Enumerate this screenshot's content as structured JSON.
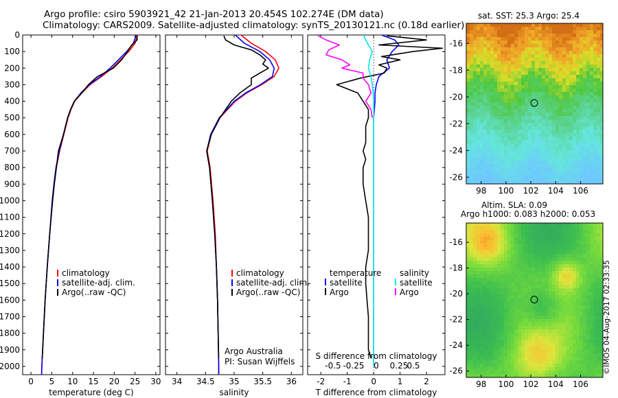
{
  "header": {
    "line1": "Argo profile: csiro 5903921_42 21-Jan-2013 20.454S 102.274E (DM data)",
    "line2": "Climatology: CARS2009. Satellite-adjusted climatology: synTS_20130121.nc (0.18d earlier)"
  },
  "map_sst": {
    "title": "sat. SST: 25.3 Argo: 25.4"
  },
  "map_sla": {
    "title_line1": "Altim. SLA: 0.09",
    "title_line2": "Argo h1000: 0.083 h2000: 0.053"
  },
  "footer": {
    "credit": "©IMOS 04-Aug-2017 02:33:35"
  },
  "colors": {
    "climatology": "#ff0000",
    "satellite": "#0000ff",
    "argo": "#000000",
    "s_satellite": "#00e6e6",
    "s_argo": "#ff00ff"
  },
  "chart_data": [
    {
      "type": "line",
      "xlabel": "temperature (deg C)",
      "xticks": [
        "0",
        "5",
        "10",
        "15",
        "20",
        "25",
        "30"
      ],
      "yticks": [
        "0",
        "100",
        "200",
        "300",
        "400",
        "500",
        "600",
        "700",
        "800",
        "900",
        "1000",
        "1100",
        "1200",
        "1300",
        "1400",
        "1500",
        "1600",
        "1700",
        "1800",
        "1900",
        "2000"
      ],
      "xlim": [
        -2,
        31
      ],
      "ylim": [
        2050,
        0
      ],
      "legend": [
        "climatology",
        "satellite-adj. clim.",
        "Argo(..raw -QC)"
      ],
      "series": [
        {
          "name": "climatology",
          "depth": [
            0,
            50,
            100,
            150,
            200,
            250,
            300,
            350,
            400,
            450,
            500,
            600,
            700,
            800,
            900,
            1000,
            1200,
            1400,
            1600,
            1800,
            2000,
            2050
          ],
          "values": [
            25.6,
            25.0,
            23.5,
            21.5,
            19.5,
            17.0,
            14.2,
            12.2,
            10.5,
            9.6,
            8.9,
            7.9,
            6.9,
            6.1,
            5.6,
            5.2,
            4.5,
            3.9,
            3.4,
            3.0,
            2.6,
            2.55
          ]
        },
        {
          "name": "satellite-adj. clim.",
          "depth": [
            0,
            50,
            100,
            150,
            200,
            250,
            300,
            350,
            400,
            450,
            500,
            600,
            700,
            800,
            900,
            1000,
            1200,
            1400,
            1600,
            1800,
            2000,
            2050
          ],
          "values": [
            25.3,
            24.6,
            23.0,
            21.0,
            19.0,
            16.7,
            14.0,
            12.0,
            10.4,
            9.5,
            8.8,
            7.8,
            6.8,
            6.0,
            5.5,
            5.1,
            4.5,
            3.9,
            3.4,
            3.0,
            2.6,
            2.55
          ]
        },
        {
          "name": "Argo(..raw -QC)",
          "depth": [
            5,
            30,
            60,
            100,
            150,
            200,
            250,
            300,
            350,
            400,
            450,
            500,
            600,
            700,
            800,
            900,
            1000,
            1200,
            1400,
            1600,
            1800,
            1950
          ],
          "values": [
            25.5,
            25.5,
            24.2,
            23.2,
            21.8,
            19.8,
            16.0,
            13.8,
            12.2,
            10.4,
            9.5,
            8.8,
            7.8,
            6.6,
            6.1,
            5.6,
            5.2,
            4.5,
            3.9,
            3.4,
            3.0,
            2.7
          ]
        }
      ]
    },
    {
      "type": "line",
      "xlabel": "salinity",
      "xticks": [
        "34",
        "34.5",
        "35",
        "35.5",
        "36"
      ],
      "yticks": [],
      "xlim": [
        33.8,
        36.2
      ],
      "ylim": [
        2050,
        0
      ],
      "legend": [
        "climatology",
        "satellite-adj. clim.",
        "Argo(..raw -QC)"
      ],
      "annotations": [
        "Argo Australia",
        "PI: Susan Wijffels"
      ],
      "series": [
        {
          "name": "climatology",
          "depth": [
            0,
            50,
            100,
            150,
            200,
            250,
            300,
            350,
            400,
            500,
            600,
            700,
            800,
            1000,
            1200,
            1400,
            1600,
            1800,
            2000,
            2050
          ],
          "values": [
            35.12,
            35.3,
            35.55,
            35.72,
            35.78,
            35.7,
            35.48,
            35.22,
            35.02,
            34.75,
            34.6,
            34.53,
            34.58,
            34.63,
            34.67,
            34.69,
            34.71,
            34.72,
            34.73,
            34.73
          ]
        },
        {
          "name": "satellite-adj. clim.",
          "depth": [
            0,
            50,
            100,
            150,
            200,
            250,
            300,
            350,
            400,
            500,
            600,
            700,
            800,
            1000,
            1200,
            1400,
            1600,
            1800,
            2000,
            2050
          ],
          "values": [
            35.02,
            35.18,
            35.45,
            35.62,
            35.7,
            35.67,
            35.46,
            35.2,
            35.0,
            34.74,
            34.59,
            34.52,
            34.57,
            34.62,
            34.66,
            34.69,
            34.71,
            34.72,
            34.73,
            34.73
          ]
        },
        {
          "name": "Argo(..raw -QC)",
          "depth": [
            5,
            30,
            60,
            90,
            120,
            150,
            175,
            200,
            230,
            260,
            300,
            350,
            400,
            450,
            500,
            600,
            700,
            800,
            1000,
            1200,
            1400,
            1600,
            1800,
            1950
          ],
          "values": [
            34.82,
            34.85,
            35.0,
            35.3,
            35.45,
            35.55,
            35.5,
            35.6,
            35.45,
            35.3,
            35.3,
            35.1,
            34.95,
            34.85,
            34.75,
            34.6,
            34.52,
            34.57,
            34.62,
            34.66,
            34.69,
            34.71,
            34.72,
            34.73
          ]
        }
      ]
    },
    {
      "type": "line",
      "xlabel": "T difference from climatology",
      "xlabel_top": "S difference from climatology",
      "xticks": [
        "-2",
        "-1",
        "0",
        "1",
        "2"
      ],
      "xticks_top": [
        "-0.5",
        "-0.25",
        "0",
        "0.25",
        "0.5"
      ],
      "yticks": [],
      "xlim": [
        -2.5,
        2.7
      ],
      "ylim": [
        2050,
        0
      ],
      "legend_temperature": [
        "temperature",
        "satellite",
        "Argo"
      ],
      "legend_salinity": [
        "salinity",
        "satellite",
        "Argo"
      ],
      "series": [
        {
          "name": "satellite",
          "depth": [
            0,
            30,
            60,
            100,
            150,
            200,
            250,
            300,
            350,
            400,
            500,
            700,
            1000,
            1500,
            2000
          ],
          "values": [
            0.3,
            0.8,
            0.95,
            0.7,
            0.5,
            0.6,
            0.2,
            0.1,
            0.05,
            0.05,
            0.0,
            0.0,
            0.0,
            0.0,
            0.0
          ]
        },
        {
          "name": "Argo",
          "depth": [
            5,
            30,
            60,
            80,
            100,
            130,
            150,
            180,
            200,
            230,
            260,
            300,
            350,
            400,
            450,
            500,
            550,
            600,
            650,
            700,
            750,
            800,
            850,
            900,
            1000,
            1100,
            1200,
            1300,
            1400,
            1500,
            1600,
            1700,
            1800,
            1900,
            1950
          ],
          "values": [
            0.5,
            2.0,
            0.2,
            2.6,
            1.5,
            0.3,
            1.0,
            0.2,
            0.5,
            0.4,
            -0.5,
            -1.4,
            -0.6,
            -0.4,
            -0.2,
            -0.2,
            -0.3,
            -0.3,
            -0.3,
            -0.4,
            -0.3,
            -0.4,
            -0.4,
            -0.4,
            -0.3,
            -0.2,
            -0.2,
            -0.2,
            -0.3,
            -0.3,
            -0.25,
            -0.2,
            -0.2,
            -0.2,
            -0.1
          ]
        },
        {
          "name": "S satellite",
          "depth": [
            0,
            30,
            60,
            100,
            150,
            200,
            250,
            300,
            350,
            400,
            500,
            700,
            1000,
            1500,
            2000
          ],
          "values": [
            -0.38,
            -0.3,
            -0.2,
            -0.05,
            -0.15,
            -0.2,
            -0.1,
            -0.05,
            -0.02,
            0.0,
            0.0,
            0.0,
            0.0,
            0.0,
            0.0
          ]
        },
        {
          "name": "S Argo",
          "depth": [
            5,
            30,
            60,
            90,
            120,
            150,
            180,
            200,
            230,
            260,
            300,
            350,
            400,
            450,
            500
          ],
          "values": [
            -2.1,
            -1.8,
            -1.3,
            -1.7,
            -1.8,
            -1.2,
            -0.9,
            -1.2,
            -0.4,
            -0.4,
            -0.2,
            -0.1,
            -0.3,
            -0.1,
            -0.05
          ]
        }
      ]
    },
    {
      "type": "heatmap",
      "title": "sat. SST: 25.3 Argo: 25.4",
      "xticks": [
        "98",
        "100",
        "102",
        "104",
        "106"
      ],
      "yticks": [
        "-16",
        "-18",
        "-20",
        "-22",
        "-24",
        "-26"
      ],
      "xlim": [
        96.8,
        107.8
      ],
      "ylim": [
        -26.5,
        -14.5
      ],
      "marker": {
        "lon": 102.274,
        "lat": -20.454
      }
    },
    {
      "type": "heatmap",
      "title": "Altim. SLA: 0.09",
      "subtitle": "Argo h1000: 0.083 h2000: 0.053",
      "xticks": [
        "98",
        "100",
        "102",
        "104",
        "106"
      ],
      "yticks": [
        "-16",
        "-18",
        "-20",
        "-22",
        "-24",
        "-26"
      ],
      "xlim": [
        96.8,
        107.8
      ],
      "ylim": [
        -26.5,
        -14.5
      ],
      "marker": {
        "lon": 102.274,
        "lat": -20.454
      }
    }
  ]
}
